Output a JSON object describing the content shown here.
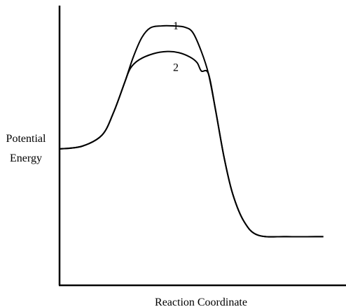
{
  "chart_data": {
    "type": "line",
    "title": "",
    "xlabel": "Reaction Coordinate",
    "ylabel": [
      "Potential",
      "Energy"
    ],
    "xlim": [
      0,
      100
    ],
    "ylim": [
      0,
      100
    ],
    "grid": false,
    "legend": "none",
    "line_color": "#000000",
    "series": [
      {
        "label_text": "1",
        "label_at": [
          41,
          92
        ],
        "points": [
          [
            0,
            49
          ],
          [
            8,
            50
          ],
          [
            15,
            54
          ],
          [
            19,
            62
          ],
          [
            23,
            73
          ],
          [
            26,
            82
          ],
          [
            29,
            89
          ],
          [
            32,
            92.5
          ],
          [
            36,
            93.2
          ],
          [
            40,
            93.2
          ],
          [
            44,
            92.8
          ],
          [
            47,
            90.8
          ],
          [
            50,
            84
          ],
          [
            52.5,
            76
          ],
          [
            55,
            63
          ],
          [
            58,
            46
          ],
          [
            61,
            33
          ],
          [
            65,
            23
          ],
          [
            70,
            18
          ],
          [
            80,
            17.5
          ],
          [
            93,
            17.5
          ]
        ]
      },
      {
        "label_text": "2",
        "label_at": [
          41,
          77
        ],
        "points": [
          [
            0,
            49
          ],
          [
            8,
            50
          ],
          [
            15,
            54
          ],
          [
            19,
            62
          ],
          [
            23,
            73
          ],
          [
            25,
            78
          ],
          [
            28,
            81
          ],
          [
            33,
            83.2
          ],
          [
            38,
            84
          ],
          [
            42,
            83.6
          ],
          [
            46,
            82
          ],
          [
            48.5,
            80
          ],
          [
            50,
            77
          ],
          [
            52.5,
            76
          ],
          [
            55,
            63
          ],
          [
            58,
            46
          ],
          [
            61,
            33
          ],
          [
            65,
            23
          ],
          [
            70,
            18
          ],
          [
            80,
            17.5
          ],
          [
            93,
            17.5
          ]
        ]
      }
    ]
  }
}
